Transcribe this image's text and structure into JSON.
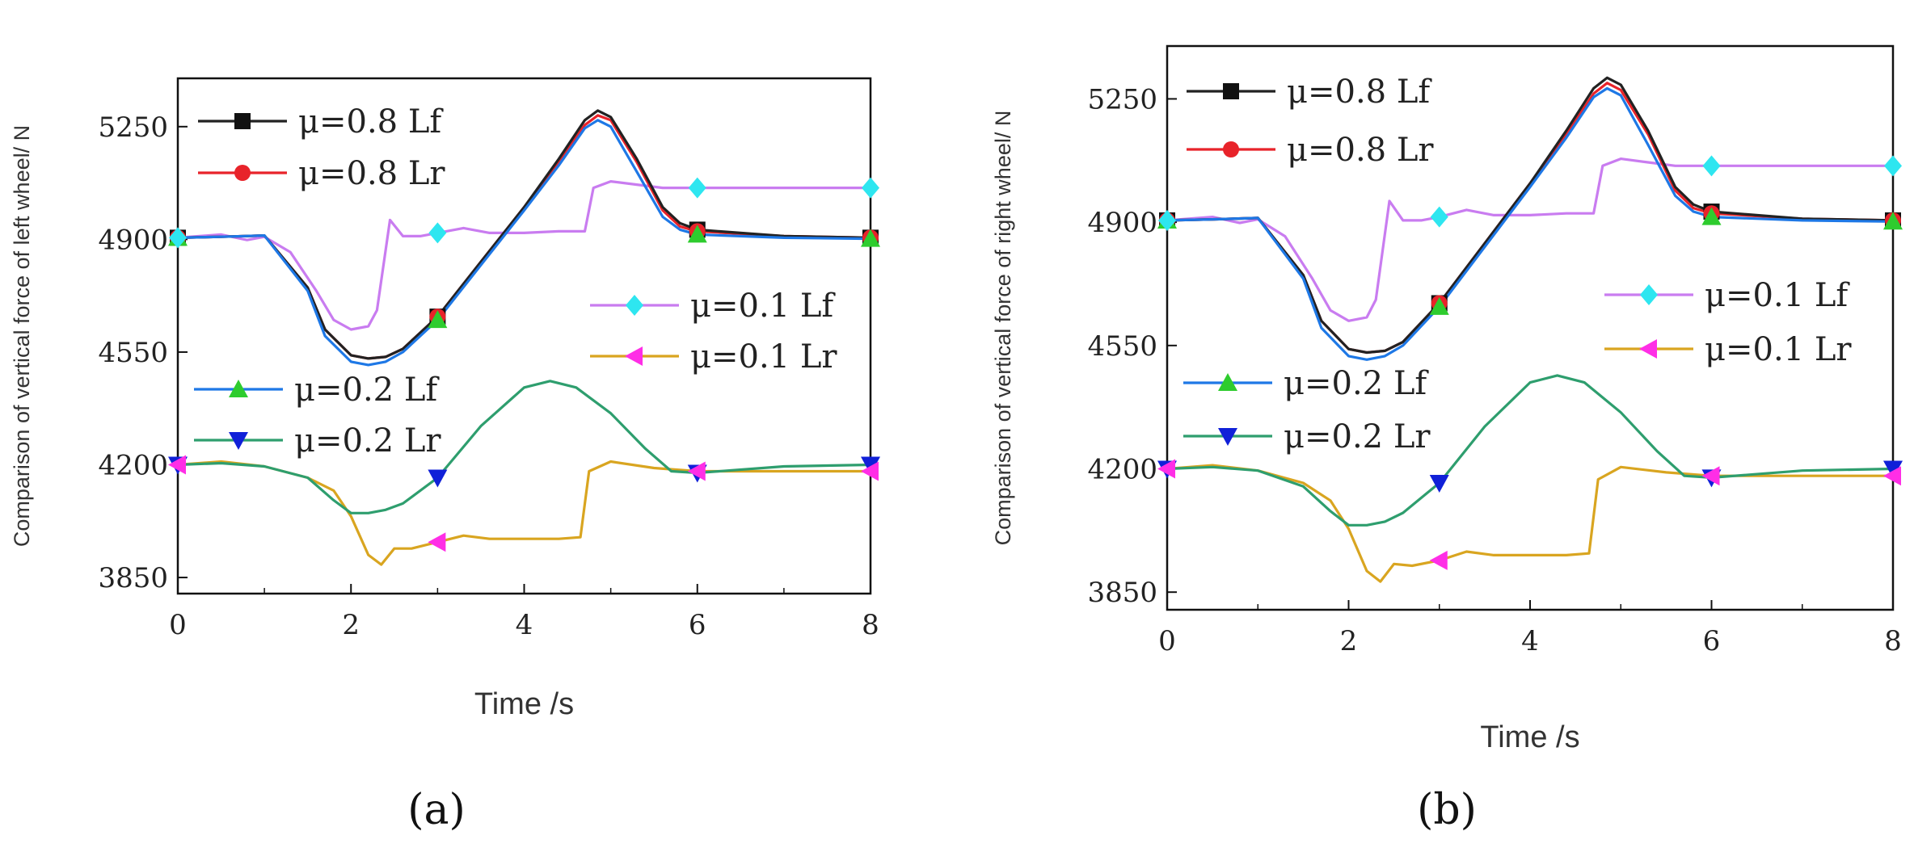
{
  "chart_data": [
    {
      "type": "line",
      "panel": "a",
      "caption": "(a)",
      "xlabel": "Time /s",
      "ylabel": "Comparison of vertical force of left wheel/ N",
      "xlim": [
        0,
        8
      ],
      "ylim": [
        3800,
        5400
      ],
      "xticks": [
        0,
        2,
        4,
        6,
        8
      ],
      "yticks": [
        3850,
        4200,
        4550,
        4900,
        5250
      ],
      "grid": false,
      "series": [
        {
          "name": "μ=0.8 Lf",
          "color": "#222222",
          "marker": "square",
          "markerColor": "#111111",
          "x": [
            0,
            0.5,
            1,
            1.5,
            1.7,
            2,
            2.2,
            2.4,
            2.6,
            3,
            3.5,
            4,
            4.4,
            4.7,
            4.85,
            5,
            5.3,
            5.6,
            5.8,
            6,
            7,
            8
          ],
          "y": [
            4905,
            4908,
            4912,
            4750,
            4620,
            4540,
            4530,
            4535,
            4560,
            4660,
            4830,
            5000,
            5150,
            5270,
            5300,
            5280,
            5150,
            5000,
            4950,
            4930,
            4910,
            4905
          ]
        },
        {
          "name": "μ=0.8 Lr",
          "color": "#e8232a",
          "marker": "circle",
          "markerColor": "#e8232a",
          "x": [
            0,
            0.5,
            1,
            1.5,
            1.7,
            2,
            2.2,
            2.4,
            2.6,
            3,
            3.5,
            4,
            4.4,
            4.7,
            4.85,
            5,
            5.3,
            5.6,
            5.8,
            6,
            7,
            8
          ],
          "y": [
            4905,
            4908,
            4912,
            4750,
            4620,
            4540,
            4530,
            4535,
            4560,
            4660,
            4830,
            5000,
            5140,
            5255,
            5285,
            5270,
            5140,
            4990,
            4940,
            4925,
            4910,
            4905
          ]
        },
        {
          "name": "μ=0.1 Lf",
          "color": "#c97cf0",
          "marker": "diamond",
          "markerColor": "#2ee6f0",
          "x": [
            0,
            0.5,
            0.8,
            1,
            1.3,
            1.6,
            1.8,
            2,
            2.2,
            2.3,
            2.45,
            2.6,
            2.8,
            3,
            3.3,
            3.6,
            4,
            4.4,
            4.7,
            4.8,
            5,
            5.3,
            5.6,
            6,
            7,
            8
          ],
          "y": [
            4905,
            4915,
            4898,
            4908,
            4860,
            4740,
            4650,
            4620,
            4630,
            4680,
            4960,
            4910,
            4910,
            4920,
            4935,
            4920,
            4920,
            4925,
            4925,
            5060,
            5080,
            5070,
            5060,
            5060,
            5060,
            5060
          ]
        },
        {
          "name": "μ=0.1 Lr",
          "color": "#d9a520",
          "marker": "triangle-left",
          "markerColor": "#ff2ee6",
          "x": [
            0,
            0.5,
            1,
            1.5,
            1.8,
            2,
            2.2,
            2.35,
            2.5,
            2.7,
            3,
            3.3,
            3.6,
            4,
            4.4,
            4.65,
            4.75,
            5,
            5.5,
            6,
            7,
            8
          ],
          "y": [
            4200,
            4210,
            4195,
            4160,
            4120,
            4040,
            3920,
            3890,
            3940,
            3940,
            3960,
            3980,
            3970,
            3970,
            3970,
            3975,
            4180,
            4210,
            4190,
            4180,
            4180,
            4180
          ]
        },
        {
          "name": "μ=0.2 Lf",
          "color": "#1e78e6",
          "marker": "triangle-up",
          "markerColor": "#2ecc2e",
          "x": [
            0,
            0.5,
            1,
            1.5,
            1.7,
            2,
            2.2,
            2.4,
            2.6,
            3,
            3.5,
            4,
            4.4,
            4.7,
            4.85,
            5,
            5.3,
            5.6,
            5.8,
            6,
            7,
            8
          ],
          "y": [
            4905,
            4908,
            4912,
            4740,
            4600,
            4520,
            4510,
            4520,
            4550,
            4650,
            4820,
            4990,
            5130,
            5245,
            5270,
            5250,
            5110,
            4970,
            4930,
            4915,
            4905,
            4902
          ]
        },
        {
          "name": "μ=0.2 Lr",
          "color": "#2e9e6e",
          "marker": "triangle-down",
          "markerColor": "#1020d8",
          "x": [
            0,
            0.5,
            1,
            1.5,
            1.8,
            2,
            2.2,
            2.4,
            2.6,
            3,
            3.5,
            4,
            4.3,
            4.6,
            5,
            5.4,
            5.7,
            6,
            7,
            8
          ],
          "y": [
            4200,
            4205,
            4195,
            4160,
            4090,
            4050,
            4050,
            4060,
            4080,
            4160,
            4320,
            4440,
            4460,
            4440,
            4360,
            4250,
            4180,
            4175,
            4195,
            4200
          ]
        }
      ]
    },
    {
      "type": "line",
      "panel": "b",
      "caption": "(b)",
      "xlabel": "Time /s",
      "ylabel": "Comparison of vertical force of right wheel/ N",
      "xlim": [
        0,
        8
      ],
      "ylim": [
        3800,
        5400
      ],
      "xticks": [
        0,
        2,
        4,
        6,
        8
      ],
      "yticks": [
        3850,
        4200,
        4550,
        4900,
        5250
      ],
      "grid": false,
      "series": [
        {
          "name": "μ=0.8 Lf",
          "color": "#222222",
          "marker": "square",
          "markerColor": "#111111",
          "x": [
            0,
            0.5,
            1,
            1.5,
            1.7,
            2,
            2.2,
            2.4,
            2.6,
            3,
            3.5,
            4,
            4.4,
            4.7,
            4.85,
            5,
            5.3,
            5.6,
            5.8,
            6,
            7,
            8
          ],
          "y": [
            4905,
            4908,
            4912,
            4750,
            4620,
            4540,
            4530,
            4535,
            4560,
            4670,
            4840,
            5010,
            5160,
            5280,
            5310,
            5290,
            5160,
            5000,
            4950,
            4930,
            4910,
            4905
          ]
        },
        {
          "name": "μ=0.8 Lr",
          "color": "#e8232a",
          "marker": "circle",
          "markerColor": "#e8232a",
          "x": [
            0,
            0.5,
            1,
            1.5,
            1.7,
            2,
            2.2,
            2.4,
            2.6,
            3,
            3.5,
            4,
            4.4,
            4.7,
            4.85,
            5,
            5.3,
            5.6,
            5.8,
            6,
            7,
            8
          ],
          "y": [
            4905,
            4908,
            4912,
            4750,
            4620,
            4540,
            4530,
            4535,
            4560,
            4670,
            4840,
            5010,
            5150,
            5265,
            5295,
            5275,
            5150,
            4990,
            4940,
            4925,
            4910,
            4905
          ]
        },
        {
          "name": "μ=0.1 Lf",
          "color": "#c97cf0",
          "marker": "diamond",
          "markerColor": "#2ee6f0",
          "x": [
            0,
            0.5,
            0.8,
            1,
            1.3,
            1.6,
            1.8,
            2,
            2.2,
            2.3,
            2.45,
            2.6,
            2.8,
            3,
            3.3,
            3.6,
            4,
            4.4,
            4.7,
            4.8,
            5,
            5.3,
            5.6,
            6,
            7,
            8
          ],
          "y": [
            4905,
            4915,
            4898,
            4908,
            4860,
            4740,
            4650,
            4620,
            4630,
            4680,
            4960,
            4905,
            4905,
            4915,
            4935,
            4920,
            4920,
            4925,
            4925,
            5060,
            5080,
            5070,
            5060,
            5060,
            5060,
            5060
          ]
        },
        {
          "name": "μ=0.1 Lr",
          "color": "#d9a520",
          "marker": "triangle-left",
          "markerColor": "#ff2ee6",
          "x": [
            0,
            0.5,
            1,
            1.5,
            1.8,
            2,
            2.2,
            2.35,
            2.5,
            2.7,
            3,
            3.3,
            3.6,
            4,
            4.4,
            4.65,
            4.75,
            5,
            5.5,
            6,
            7,
            8
          ],
          "y": [
            4200,
            4210,
            4195,
            4160,
            4110,
            4030,
            3910,
            3880,
            3930,
            3925,
            3940,
            3965,
            3955,
            3955,
            3955,
            3960,
            4170,
            4205,
            4190,
            4180,
            4180,
            4180
          ]
        },
        {
          "name": "μ=0.2 Lf",
          "color": "#1e78e6",
          "marker": "triangle-up",
          "markerColor": "#2ecc2e",
          "x": [
            0,
            0.5,
            1,
            1.5,
            1.7,
            2,
            2.2,
            2.4,
            2.6,
            3,
            3.5,
            4,
            4.4,
            4.7,
            4.85,
            5,
            5.3,
            5.6,
            5.8,
            6,
            7,
            8
          ],
          "y": [
            4905,
            4908,
            4912,
            4740,
            4600,
            4520,
            4510,
            4520,
            4550,
            4660,
            4830,
            5000,
            5140,
            5255,
            5280,
            5260,
            5120,
            4975,
            4930,
            4915,
            4905,
            4902
          ]
        },
        {
          "name": "μ=0.2 Lr",
          "color": "#2e9e6e",
          "marker": "triangle-down",
          "markerColor": "#1020d8",
          "x": [
            0,
            0.5,
            1,
            1.5,
            1.8,
            2,
            2.2,
            2.4,
            2.6,
            3,
            3.5,
            4,
            4.3,
            4.6,
            5,
            5.4,
            5.7,
            6,
            7,
            8
          ],
          "y": [
            4200,
            4205,
            4195,
            4150,
            4080,
            4040,
            4040,
            4050,
            4075,
            4160,
            4320,
            4445,
            4465,
            4445,
            4360,
            4250,
            4180,
            4175,
            4195,
            4200
          ]
        }
      ]
    }
  ]
}
